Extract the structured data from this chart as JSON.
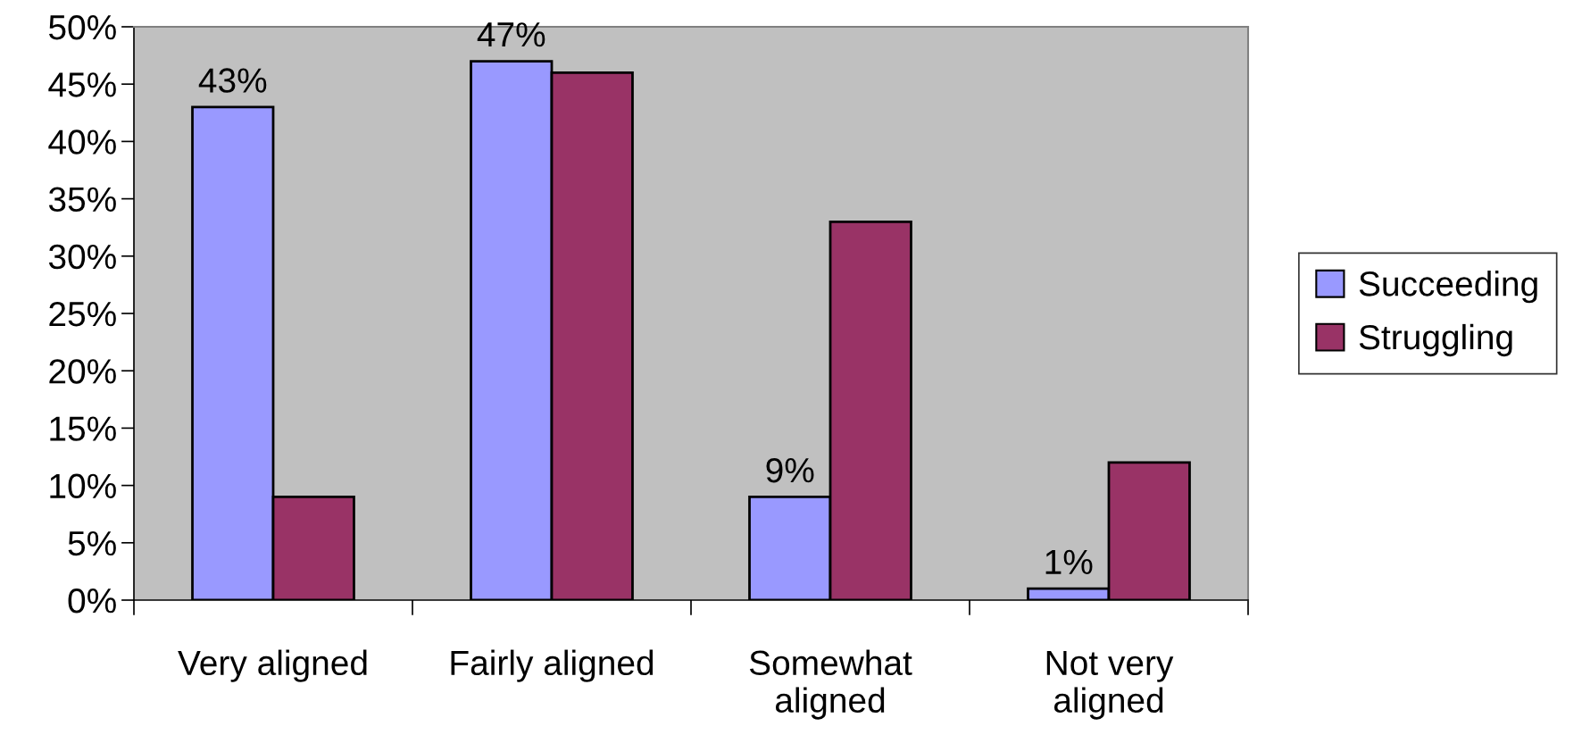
{
  "chart_data": {
    "type": "bar",
    "categories": [
      "Very aligned",
      "Fairly aligned",
      "Somewhat\naligned",
      "Not very\naligned"
    ],
    "series": [
      {
        "name": "Succeeding",
        "color": "#9999ff",
        "values": [
          43,
          47,
          9,
          1
        ],
        "value_labels": [
          "43%",
          "47%",
          "9%",
          "1%"
        ]
      },
      {
        "name": "Struggling",
        "color": "#993366",
        "values": [
          9,
          46,
          33,
          12
        ]
      }
    ],
    "ylim": [
      0,
      50
    ],
    "yticks": [
      {
        "value": 0,
        "label": "0%"
      },
      {
        "value": 5,
        "label": "5%"
      },
      {
        "value": 10,
        "label": "10%"
      },
      {
        "value": 15,
        "label": "15%"
      },
      {
        "value": 20,
        "label": "20%"
      },
      {
        "value": 25,
        "label": "25%"
      },
      {
        "value": 30,
        "label": "30%"
      },
      {
        "value": 35,
        "label": "35%"
      },
      {
        "value": 40,
        "label": "40%"
      },
      {
        "value": 45,
        "label": "45%"
      },
      {
        "value": 50,
        "label": "50%"
      }
    ],
    "grid": false,
    "legend": "right"
  }
}
